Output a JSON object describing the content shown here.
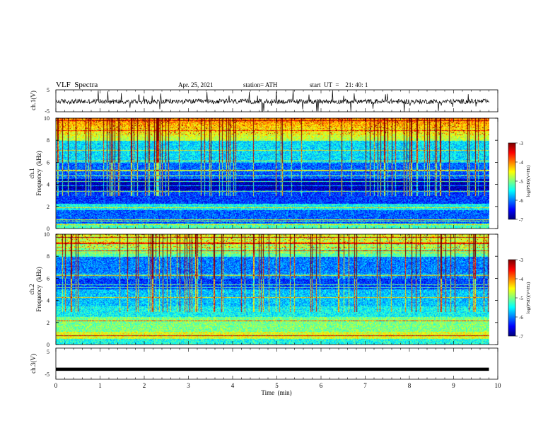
{
  "header": {
    "title": "VLF  Spectra",
    "date": "Apr. 25, 2021",
    "station": "station= ATH",
    "start": "start  UT  =    21: 40: 1"
  },
  "chart_data": [
    {
      "type": "line",
      "name": "ch1-waveform",
      "ylabel": "ch.1(V)",
      "ylim": [
        -5,
        5
      ],
      "yticks": [
        "5",
        "-5"
      ],
      "line_color": "#000000",
      "xlim": [
        0,
        10
      ]
    },
    {
      "type": "heatmap",
      "name": "ch1-spectrogram",
      "ylabel_line1": "ch.1",
      "ylabel_line2": "Frequency  (kHz)",
      "ylim": [
        0,
        10
      ],
      "yticks": [
        "0",
        "2",
        "4",
        "6",
        "8",
        "10"
      ],
      "xlim": [
        0,
        10
      ],
      "data_extent_min": 9.8,
      "colorbar": {
        "label": "log(PSD)(V²/Hz)",
        "ticks": [
          "-3",
          "-4",
          "-5",
          "-6",
          "-7"
        ],
        "range": [
          -7,
          -3
        ]
      }
    },
    {
      "type": "heatmap",
      "name": "ch2-spectrogram",
      "ylabel_line1": "ch.2",
      "ylabel_line2": "Frequency  (kHz)",
      "ylim": [
        0,
        10
      ],
      "yticks": [
        "0",
        "2",
        "4",
        "6",
        "8",
        "10"
      ],
      "xlim": [
        0,
        10
      ],
      "data_extent_min": 9.8,
      "colorbar": {
        "label": "log(PSD)(V²/Hz)",
        "ticks": [
          "-3",
          "-4",
          "-5",
          "-6",
          "-7"
        ],
        "range": [
          -7,
          -3
        ]
      }
    },
    {
      "type": "line",
      "name": "ch3-waveform",
      "ylabel": "ch.3(V)",
      "ylim": [
        -5,
        5
      ],
      "yticks": [
        "5",
        "-5"
      ],
      "level": -1.8,
      "xlim": [
        0,
        10
      ]
    }
  ],
  "xaxis": {
    "label": "Time  (min)",
    "ticks": [
      "0",
      "1",
      "2",
      "3",
      "4",
      "5",
      "6",
      "7",
      "8",
      "9",
      "10"
    ],
    "range": [
      0,
      10
    ]
  },
  "colors": {
    "jet": [
      "#00007f",
      "#0000ff",
      "#007fff",
      "#00ffff",
      "#7fff7f",
      "#ffff00",
      "#ff7f00",
      "#ff0000",
      "#7f0000"
    ]
  }
}
